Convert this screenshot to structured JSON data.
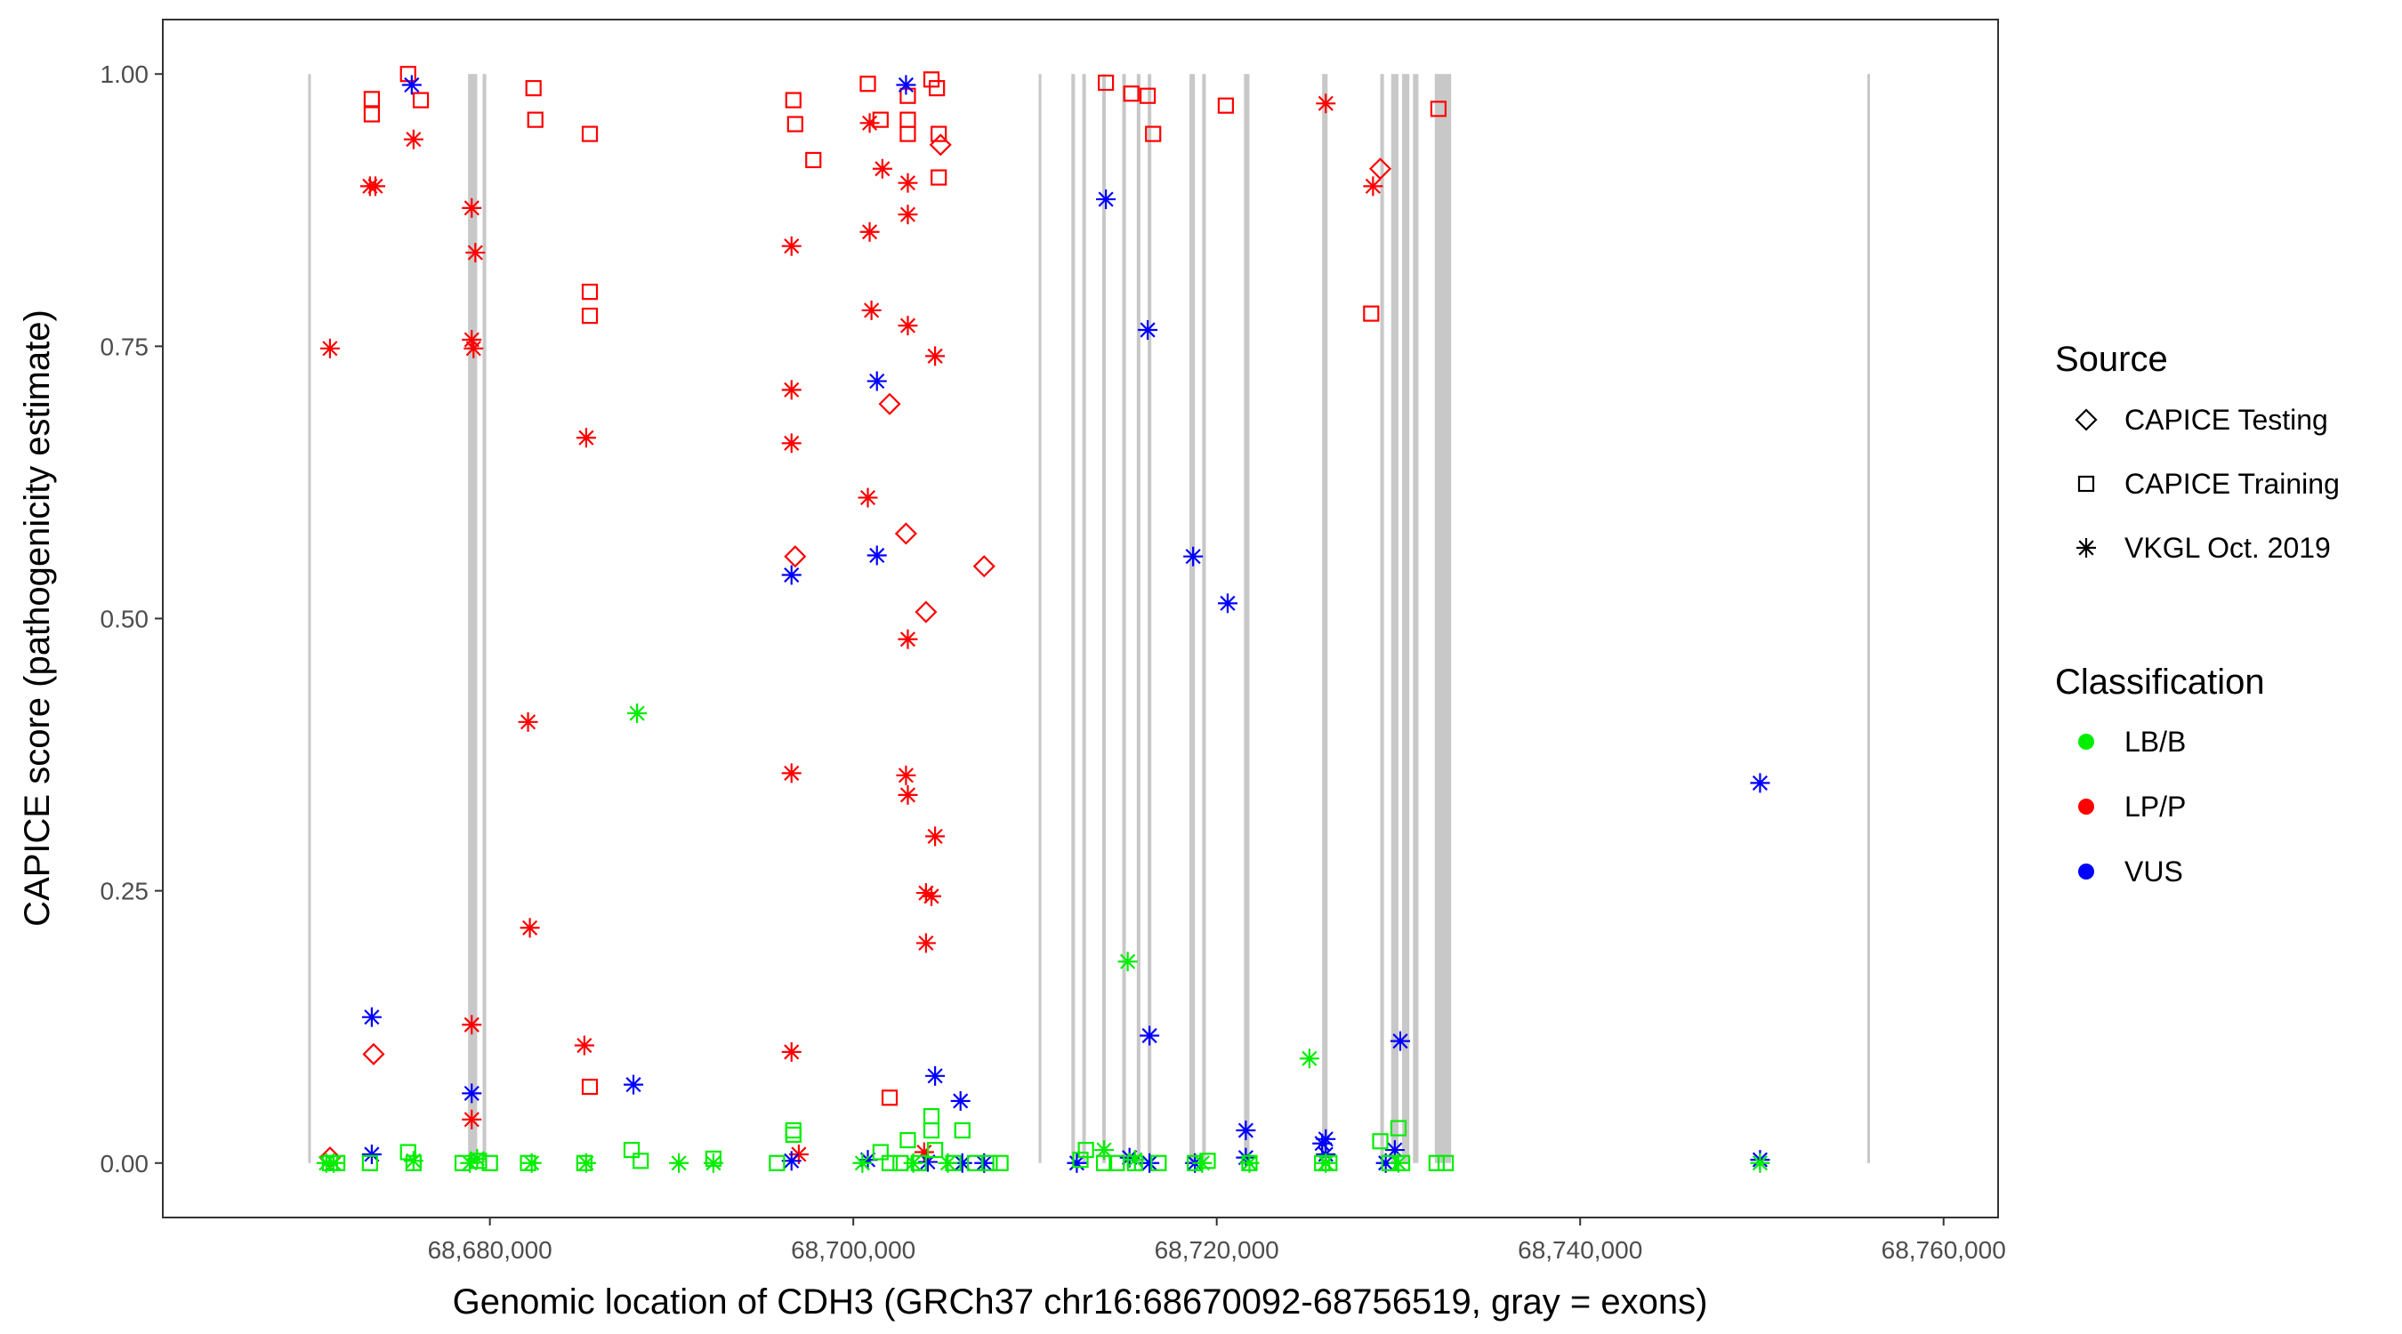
{
  "chart_data": {
    "type": "scatter",
    "xlabel": "Genomic location of CDH3 (GRCh37 chr16:68670092-68756519, gray = exons)",
    "ylabel": "CAPICE score (pathogenicity estimate)",
    "xlim": [
      68662000,
      68763000
    ],
    "ylim": [
      -0.05,
      1.05
    ],
    "x_ticks": [
      68680000,
      68700000,
      68720000,
      68740000,
      68760000
    ],
    "x_tick_labels": [
      "68,680,000",
      "68,700,000",
      "68,720,000",
      "68,740,000",
      "68,760,000"
    ],
    "y_ticks": [
      0,
      0.25,
      0.5,
      0.75,
      1.0
    ],
    "y_tick_labels": [
      "0.00",
      "0.25",
      "0.50",
      "0.75",
      "1.00"
    ],
    "exons": [
      [
        68670000,
        68670150
      ],
      [
        68678800,
        68679300
      ],
      [
        68679600,
        68679800
      ],
      [
        68710200,
        68710350
      ],
      [
        68712000,
        68712200
      ],
      [
        68712600,
        68712800
      ],
      [
        68713700,
        68713900
      ],
      [
        68714800,
        68715000
      ],
      [
        68715600,
        68715800
      ],
      [
        68716200,
        68716400
      ],
      [
        68718500,
        68718800
      ],
      [
        68719200,
        68719400
      ],
      [
        68721500,
        68721800
      ],
      [
        68725800,
        68726100
      ],
      [
        68729000,
        68729200
      ],
      [
        68729600,
        68730000
      ],
      [
        68730200,
        68730600
      ],
      [
        68730800,
        68731100
      ],
      [
        68732000,
        68732900
      ],
      [
        68755800,
        68755950
      ]
    ],
    "legend": {
      "source_title": "Source",
      "source_items": [
        {
          "label": "CAPICE Testing",
          "shape": "diamond"
        },
        {
          "label": "CAPICE Training",
          "shape": "square"
        },
        {
          "label": "VKGL Oct. 2019",
          "shape": "asterisk"
        }
      ],
      "class_title": "Classification",
      "class_items": [
        {
          "label": "LB/B",
          "color": "#00ee00"
        },
        {
          "label": "LP/P",
          "color": "#ff0000"
        },
        {
          "label": "VUS",
          "color": "#0000ff"
        }
      ]
    },
    "colors": {
      "LB/B": "#00ee00",
      "LP/P": "#ff0000",
      "VUS": "#0000ff"
    },
    "points": [
      [
        "diamond",
        "LP/P",
        68671200,
        0.005
      ],
      [
        "diamond",
        "LP/P",
        68673600,
        0.1
      ],
      [
        "diamond",
        "LP/P",
        68696800,
        0.557
      ],
      [
        "diamond",
        "LP/P",
        68702000,
        0.697
      ],
      [
        "diamond",
        "LP/P",
        68702900,
        0.578
      ],
      [
        "diamond",
        "LP/P",
        68704000,
        0.506
      ],
      [
        "diamond",
        "LP/P",
        68704800,
        0.935
      ],
      [
        "diamond",
        "LP/P",
        68707200,
        0.548
      ],
      [
        "diamond",
        "LP/P",
        68729000,
        0.913
      ],
      [
        "square",
        "LP/P",
        68673500,
        0.977
      ],
      [
        "square",
        "LP/P",
        68673500,
        0.963
      ],
      [
        "square",
        "LP/P",
        68675500,
        1.0
      ],
      [
        "square",
        "LP/P",
        68676200,
        0.976
      ],
      [
        "square",
        "LP/P",
        68682400,
        0.987
      ],
      [
        "square",
        "LP/P",
        68682500,
        0.958
      ],
      [
        "square",
        "LP/P",
        68685500,
        0.945
      ],
      [
        "square",
        "LP/P",
        68685500,
        0.8
      ],
      [
        "square",
        "LP/P",
        68685500,
        0.778
      ],
      [
        "square",
        "LP/P",
        68685500,
        0.07
      ],
      [
        "square",
        "LP/P",
        68696700,
        0.976
      ],
      [
        "square",
        "LP/P",
        68696800,
        0.954
      ],
      [
        "square",
        "LP/P",
        68697800,
        0.921
      ],
      [
        "square",
        "LP/P",
        68700800,
        0.991
      ],
      [
        "square",
        "LP/P",
        68701500,
        0.958
      ],
      [
        "square",
        "LP/P",
        68703000,
        0.98
      ],
      [
        "square",
        "LP/P",
        68703000,
        0.958
      ],
      [
        "square",
        "LP/P",
        68703000,
        0.945
      ],
      [
        "square",
        "LP/P",
        68704300,
        0.995
      ],
      [
        "square",
        "LP/P",
        68704600,
        0.987
      ],
      [
        "square",
        "LP/P",
        68704700,
        0.945
      ],
      [
        "square",
        "LP/P",
        68704700,
        0.905
      ],
      [
        "square",
        "LP/P",
        68702000,
        0.06
      ],
      [
        "square",
        "LP/P",
        68713900,
        0.992
      ],
      [
        "square",
        "LP/P",
        68715300,
        0.982
      ],
      [
        "square",
        "LP/P",
        68716200,
        0.98
      ],
      [
        "square",
        "LP/P",
        68716500,
        0.945
      ],
      [
        "square",
        "LP/P",
        68720500,
        0.971
      ],
      [
        "square",
        "LP/P",
        68728500,
        0.78
      ],
      [
        "square",
        "LP/P",
        68732200,
        0.968
      ],
      [
        "asterisk",
        "LP/P",
        68671200,
        0.748
      ],
      [
        "asterisk",
        "LP/P",
        68673400,
        0.897
      ],
      [
        "asterisk",
        "LP/P",
        68673700,
        0.897
      ],
      [
        "asterisk",
        "LP/P",
        68675800,
        0.94
      ],
      [
        "asterisk",
        "LP/P",
        68679000,
        0.877
      ],
      [
        "asterisk",
        "LP/P",
        68679200,
        0.836
      ],
      [
        "asterisk",
        "LP/P",
        68679000,
        0.756
      ],
      [
        "asterisk",
        "LP/P",
        68679100,
        0.748
      ],
      [
        "asterisk",
        "LP/P",
        68679000,
        0.127
      ],
      [
        "asterisk",
        "LP/P",
        68679000,
        0.04
      ],
      [
        "asterisk",
        "LP/P",
        68682100,
        0.405
      ],
      [
        "asterisk",
        "LP/P",
        68682200,
        0.216
      ],
      [
        "asterisk",
        "LP/P",
        68685300,
        0.666
      ],
      [
        "asterisk",
        "LP/P",
        68685200,
        0.108
      ],
      [
        "asterisk",
        "LP/P",
        68696600,
        0.842
      ],
      [
        "asterisk",
        "LP/P",
        68696600,
        0.71
      ],
      [
        "asterisk",
        "LP/P",
        68696600,
        0.661
      ],
      [
        "asterisk",
        "LP/P",
        68696600,
        0.358
      ],
      [
        "asterisk",
        "LP/P",
        68696600,
        0.102
      ],
      [
        "asterisk",
        "LP/P",
        68697000,
        0.008
      ],
      [
        "asterisk",
        "LP/P",
        68700900,
        0.955
      ],
      [
        "asterisk",
        "LP/P",
        68701600,
        0.913
      ],
      [
        "asterisk",
        "LP/P",
        68700900,
        0.855
      ],
      [
        "asterisk",
        "LP/P",
        68701000,
        0.783
      ],
      [
        "asterisk",
        "LP/P",
        68700800,
        0.611
      ],
      [
        "asterisk",
        "LP/P",
        68703000,
        0.9
      ],
      [
        "asterisk",
        "LP/P",
        68703000,
        0.871
      ],
      [
        "asterisk",
        "LP/P",
        68703000,
        0.769
      ],
      [
        "asterisk",
        "LP/P",
        68703000,
        0.481
      ],
      [
        "asterisk",
        "LP/P",
        68702900,
        0.356
      ],
      [
        "asterisk",
        "LP/P",
        68703000,
        0.338
      ],
      [
        "asterisk",
        "LP/P",
        68704500,
        0.741
      ],
      [
        "asterisk",
        "LP/P",
        68704500,
        0.3
      ],
      [
        "asterisk",
        "LP/P",
        68704000,
        0.248
      ],
      [
        "asterisk",
        "LP/P",
        68704300,
        0.245
      ],
      [
        "asterisk",
        "LP/P",
        68704000,
        0.202
      ],
      [
        "asterisk",
        "LP/P",
        68703900,
        0.01
      ],
      [
        "asterisk",
        "LP/P",
        68726000,
        0.973
      ],
      [
        "asterisk",
        "LP/P",
        68728600,
        0.897
      ],
      [
        "asterisk",
        "VUS",
        68675700,
        0.99
      ],
      [
        "asterisk",
        "VUS",
        68673500,
        0.134
      ],
      [
        "asterisk",
        "VUS",
        68673500,
        0.008
      ],
      [
        "asterisk",
        "VUS",
        68679000,
        0.064
      ],
      [
        "asterisk",
        "VUS",
        68687900,
        0.072
      ],
      [
        "asterisk",
        "VUS",
        68696600,
        0.54
      ],
      [
        "asterisk",
        "VUS",
        68696600,
        0.002
      ],
      [
        "asterisk",
        "VUS",
        68701300,
        0.718
      ],
      [
        "asterisk",
        "VUS",
        68701300,
        0.558
      ],
      [
        "asterisk",
        "VUS",
        68702900,
        0.99
      ],
      [
        "asterisk",
        "VUS",
        68704500,
        0.08
      ],
      [
        "asterisk",
        "VUS",
        68705900,
        0.057
      ],
      [
        "asterisk",
        "VUS",
        68700800,
        0.003
      ],
      [
        "asterisk",
        "VUS",
        68704100,
        0.001
      ],
      [
        "asterisk",
        "VUS",
        68706000,
        0.0
      ],
      [
        "asterisk",
        "VUS",
        68707200,
        0.0
      ],
      [
        "asterisk",
        "VUS",
        68712300,
        0.0
      ],
      [
        "asterisk",
        "VUS",
        68713900,
        0.885
      ],
      [
        "asterisk",
        "VUS",
        68715200,
        0.005
      ],
      [
        "asterisk",
        "VUS",
        68716200,
        0.765
      ],
      [
        "asterisk",
        "VUS",
        68716300,
        0.117
      ],
      [
        "asterisk",
        "VUS",
        68716300,
        0.0
      ],
      [
        "asterisk",
        "VUS",
        68718700,
        0.557
      ],
      [
        "asterisk",
        "VUS",
        68718800,
        0.0
      ],
      [
        "asterisk",
        "VUS",
        68720600,
        0.514
      ],
      [
        "asterisk",
        "VUS",
        68721600,
        0.03
      ],
      [
        "asterisk",
        "VUS",
        68721600,
        0.005
      ],
      [
        "asterisk",
        "VUS",
        68725800,
        0.018
      ],
      [
        "asterisk",
        "VUS",
        68726000,
        0.022
      ],
      [
        "asterisk",
        "VUS",
        68726000,
        0.008
      ],
      [
        "asterisk",
        "VUS",
        68729300,
        0.0
      ],
      [
        "asterisk",
        "VUS",
        68729800,
        0.012
      ],
      [
        "asterisk",
        "VUS",
        68730100,
        0.112
      ],
      [
        "asterisk",
        "VUS",
        68749900,
        0.349
      ],
      [
        "asterisk",
        "VUS",
        68749900,
        0.003
      ],
      [
        "square",
        "LB/B",
        68671200,
        0.0
      ],
      [
        "square",
        "LB/B",
        68671600,
        0.0
      ],
      [
        "square",
        "LB/B",
        68673400,
        0.0
      ],
      [
        "square",
        "LB/B",
        68675500,
        0.01
      ],
      [
        "square",
        "LB/B",
        68675800,
        0.0
      ],
      [
        "square",
        "LB/B",
        68678500,
        0.0
      ],
      [
        "square",
        "LB/B",
        68679400,
        0.002
      ],
      [
        "square",
        "LB/B",
        68680000,
        0.0
      ],
      [
        "square",
        "LB/B",
        68682100,
        0.0
      ],
      [
        "square",
        "LB/B",
        68685200,
        0.0
      ],
      [
        "square",
        "LB/B",
        68687800,
        0.012
      ],
      [
        "square",
        "LB/B",
        68688300,
        0.002
      ],
      [
        "square",
        "LB/B",
        68692300,
        0.004
      ],
      [
        "square",
        "LB/B",
        68695800,
        0.0
      ],
      [
        "square",
        "LB/B",
        68696700,
        0.03
      ],
      [
        "square",
        "LB/B",
        68696700,
        0.026
      ],
      [
        "square",
        "LB/B",
        68701500,
        0.01
      ],
      [
        "square",
        "LB/B",
        68702000,
        0.0
      ],
      [
        "square",
        "LB/B",
        68702600,
        0.0
      ],
      [
        "square",
        "LB/B",
        68703000,
        0.021
      ],
      [
        "square",
        "LB/B",
        68703600,
        0.0
      ],
      [
        "square",
        "LB/B",
        68704300,
        0.043
      ],
      [
        "square",
        "LB/B",
        68704300,
        0.03
      ],
      [
        "square",
        "LB/B",
        68704500,
        0.012
      ],
      [
        "square",
        "LB/B",
        68705500,
        0.0
      ],
      [
        "square",
        "LB/B",
        68706000,
        0.03
      ],
      [
        "square",
        "LB/B",
        68706700,
        0.0
      ],
      [
        "square",
        "LB/B",
        68707500,
        0.0
      ],
      [
        "square",
        "LB/B",
        68708100,
        0.0
      ],
      [
        "square",
        "LB/B",
        68712500,
        0.003
      ],
      [
        "square",
        "LB/B",
        68712800,
        0.012
      ],
      [
        "square",
        "LB/B",
        68713800,
        0.0
      ],
      [
        "square",
        "LB/B",
        68714500,
        0.0
      ],
      [
        "square",
        "LB/B",
        68715500,
        0.0
      ],
      [
        "square",
        "LB/B",
        68716800,
        0.0
      ],
      [
        "square",
        "LB/B",
        68718800,
        0.0
      ],
      [
        "square",
        "LB/B",
        68719500,
        0.002
      ],
      [
        "square",
        "LB/B",
        68721800,
        0.0
      ],
      [
        "square",
        "LB/B",
        68725800,
        0.0
      ],
      [
        "square",
        "LB/B",
        68726200,
        0.0
      ],
      [
        "square",
        "LB/B",
        68729000,
        0.02
      ],
      [
        "square",
        "LB/B",
        68729500,
        0.0
      ],
      [
        "square",
        "LB/B",
        68730000,
        0.032
      ],
      [
        "square",
        "LB/B",
        68730200,
        0.0
      ],
      [
        "square",
        "LB/B",
        68732100,
        0.0
      ],
      [
        "square",
        "LB/B",
        68732600,
        0.0
      ],
      [
        "asterisk",
        "LB/B",
        68671000,
        0.0
      ],
      [
        "asterisk",
        "LB/B",
        68671400,
        0.0
      ],
      [
        "asterisk",
        "LB/B",
        68675800,
        0.002
      ],
      [
        "asterisk",
        "LB/B",
        68678900,
        0.0
      ],
      [
        "asterisk",
        "LB/B",
        68679300,
        0.004
      ],
      [
        "asterisk",
        "LB/B",
        68682300,
        0.0
      ],
      [
        "asterisk",
        "LB/B",
        68685300,
        0.0
      ],
      [
        "asterisk",
        "LB/B",
        68688100,
        0.413
      ],
      [
        "asterisk",
        "LB/B",
        68690400,
        0.0
      ],
      [
        "asterisk",
        "LB/B",
        68692300,
        0.0
      ],
      [
        "asterisk",
        "LB/B",
        68700500,
        0.0
      ],
      [
        "asterisk",
        "LB/B",
        68703300,
        0.0
      ],
      [
        "asterisk",
        "LB/B",
        68705200,
        0.0
      ],
      [
        "asterisk",
        "LB/B",
        68713800,
        0.012
      ],
      [
        "asterisk",
        "LB/B",
        68715100,
        0.185
      ],
      [
        "asterisk",
        "LB/B",
        68715500,
        0.003
      ],
      [
        "asterisk",
        "LB/B",
        68719200,
        0.0
      ],
      [
        "asterisk",
        "LB/B",
        68721800,
        0.0
      ],
      [
        "asterisk",
        "LB/B",
        68725100,
        0.096
      ],
      [
        "asterisk",
        "LB/B",
        68726000,
        0.0
      ],
      [
        "asterisk",
        "LB/B",
        68730000,
        0.0
      ],
      [
        "asterisk",
        "LB/B",
        68749900,
        0.0
      ]
    ]
  }
}
